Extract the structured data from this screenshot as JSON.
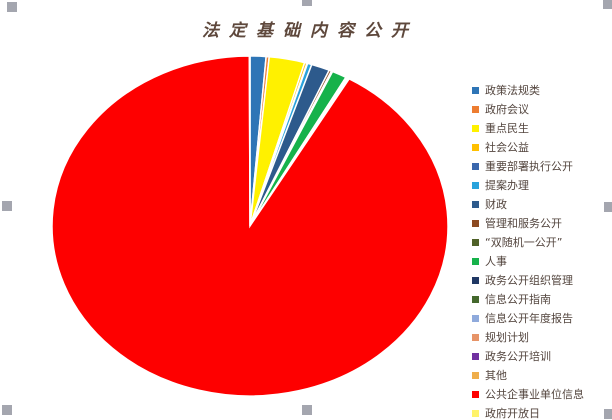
{
  "chart_data": {
    "type": "pie",
    "title": "法定基础内容公开",
    "title_color": "#5E483C",
    "legend_position": "right",
    "legend_text_color": "#53453E",
    "start_angle_deg": 0,
    "direction": "clockwise",
    "background": "#FFFFFF",
    "slice_border_color": "#FFFFFF",
    "slices": [
      {
        "label": "政策法规类",
        "value": 1.3,
        "color": "#2E75B6"
      },
      {
        "label": "政府会议",
        "value": 0.25,
        "color": "#ED7D31"
      },
      {
        "label": "重点民生",
        "value": 2.9,
        "color": "#FFF100"
      },
      {
        "label": "社会公益",
        "value": 0.2,
        "color": "#FFC000"
      },
      {
        "label": "重要部署执行公开",
        "value": 0.05,
        "color": "#3A67AD"
      },
      {
        "label": "提案办理",
        "value": 0.35,
        "color": "#29A3DC"
      },
      {
        "label": "财政",
        "value": 1.5,
        "color": "#2D5A8C"
      },
      {
        "label": "管理和服务公开",
        "value": 0.2,
        "color": "#8C4A21"
      },
      {
        "label": "“双随机一公开”",
        "value": 0.1,
        "color": "#4F6128"
      },
      {
        "label": "人事",
        "value": 1.2,
        "color": "#16B24B"
      },
      {
        "label": "政务公开组织管理",
        "value": 0.05,
        "color": "#203864"
      },
      {
        "label": "信息公开指南",
        "value": 0.05,
        "color": "#44682D"
      },
      {
        "label": "信息公开年度报告",
        "value": 0.05,
        "color": "#8FAADC"
      },
      {
        "label": "规划计划",
        "value": 0.05,
        "color": "#E79468"
      },
      {
        "label": "政务公开培训",
        "value": 0.05,
        "color": "#7030A0"
      },
      {
        "label": "其他",
        "value": 0.05,
        "color": "#EFAE4B"
      },
      {
        "label": "公共企事业单位信息",
        "value": 91.6,
        "color": "#FE0000"
      },
      {
        "label": "政府开放日",
        "value": 0.05,
        "color": "#FFF36B"
      }
    ]
  },
  "selection": {
    "handle_color": "#A4A6AF",
    "handle_count": 8
  }
}
